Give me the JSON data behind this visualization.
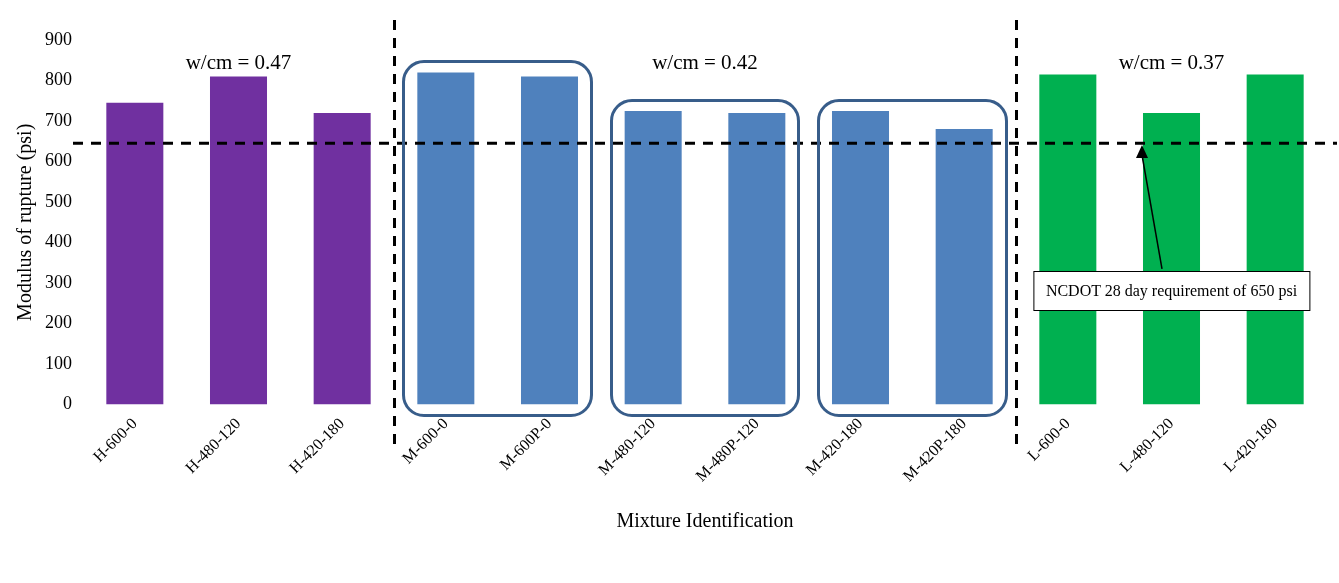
{
  "chart_data": {
    "type": "bar",
    "xlabel": "Mixture Identification",
    "ylabel": "Modulus of rupture (psi)",
    "categories": [
      "H-600-0",
      "H-480-120",
      "H-420-180",
      "M-600-0",
      "M-600P-0",
      "M-480-120",
      "M-480P-120",
      "M-420-180",
      "M-420P-180",
      "L-600-0",
      "L-480-120",
      "L-420-180"
    ],
    "values": [
      745,
      810,
      720,
      820,
      810,
      725,
      720,
      725,
      680,
      815,
      720,
      815
    ],
    "colors": [
      "#7030a0",
      "#7030a0",
      "#7030a0",
      "#4f81bd",
      "#4f81bd",
      "#4f81bd",
      "#4f81bd",
      "#4f81bd",
      "#4f81bd",
      "#00b050",
      "#00b050",
      "#00b050"
    ],
    "ylim": [
      0,
      900
    ],
    "yticks": [
      0,
      100,
      200,
      300,
      400,
      500,
      600,
      700,
      800,
      900
    ],
    "grid": false,
    "legend": false,
    "ref_lines": [
      {
        "axis": "y",
        "value": 645,
        "color": "#000000",
        "line_style": "dashed"
      }
    ],
    "annotations": [
      "w/cm = 0.47",
      "w/cm = 0.42",
      "w/cm = 0.37",
      {
        "text": "NCDOT 28 day requirement of 650 psi",
        "x": "L-480-120",
        "y": 280
      }
    ]
  }
}
